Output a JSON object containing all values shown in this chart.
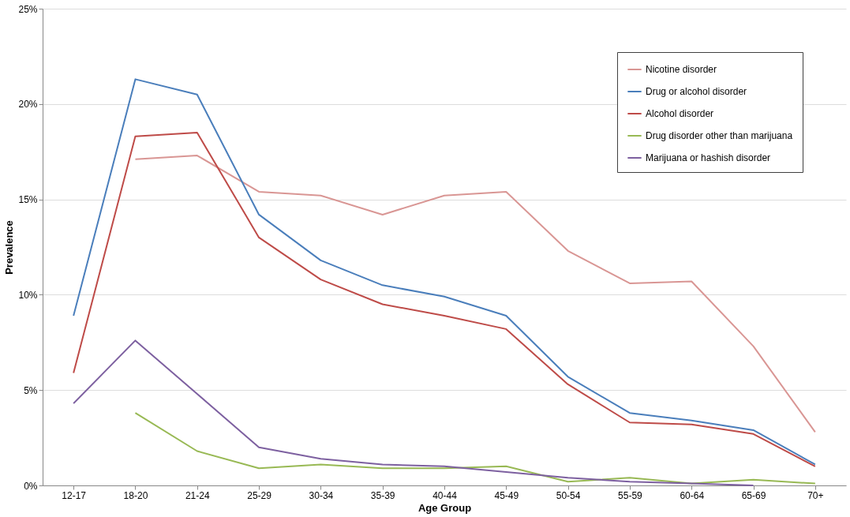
{
  "chart_data": {
    "type": "line",
    "xlabel": "Age Group",
    "ylabel": "Prevalence",
    "categories": [
      "12-17",
      "18-20",
      "21-24",
      "25-29",
      "30-34",
      "35-39",
      "40-44",
      "45-49",
      "50-54",
      "55-59",
      "60-64",
      "65-69",
      "70+"
    ],
    "series": [
      {
        "name": "Nicotine disorder",
        "color": "#d99694",
        "values": [
          null,
          17.1,
          17.3,
          15.4,
          15.2,
          14.2,
          15.2,
          15.4,
          12.3,
          10.6,
          10.7,
          7.3,
          2.8
        ]
      },
      {
        "name": "Drug or alcohol disorder",
        "color": "#4a7ebb",
        "values": [
          8.9,
          21.3,
          20.5,
          14.2,
          11.8,
          10.5,
          9.9,
          8.9,
          5.7,
          3.8,
          3.4,
          2.9,
          1.1
        ]
      },
      {
        "name": "Alcohol disorder",
        "color": "#be4b48",
        "values": [
          5.9,
          18.3,
          18.5,
          13.0,
          10.8,
          9.5,
          8.9,
          8.2,
          5.3,
          3.3,
          3.2,
          2.7,
          1.0
        ]
      },
      {
        "name": "Drug disorder other than marijuana",
        "color": "#98b954",
        "values": [
          null,
          3.8,
          1.8,
          0.9,
          1.1,
          0.9,
          0.9,
          1.0,
          0.2,
          0.4,
          0.1,
          0.3,
          0.1
        ]
      },
      {
        "name": "Marijuana or hashish disorder",
        "color": "#7d60a0",
        "values": [
          4.3,
          7.6,
          4.8,
          2.0,
          1.4,
          1.1,
          1.0,
          0.7,
          0.4,
          0.2,
          0.1,
          0.0,
          null
        ]
      }
    ],
    "ylim": [
      0,
      25
    ],
    "yticks": [
      {
        "value": 0,
        "label": "0%"
      },
      {
        "value": 5,
        "label": "5%"
      },
      {
        "value": 10,
        "label": "10%"
      },
      {
        "value": 15,
        "label": "15%"
      },
      {
        "value": 20,
        "label": "20%"
      },
      {
        "value": 25,
        "label": "25%"
      }
    ],
    "grid": "y",
    "legend": "top right",
    "marker": "none",
    "line_style": "solid"
  }
}
